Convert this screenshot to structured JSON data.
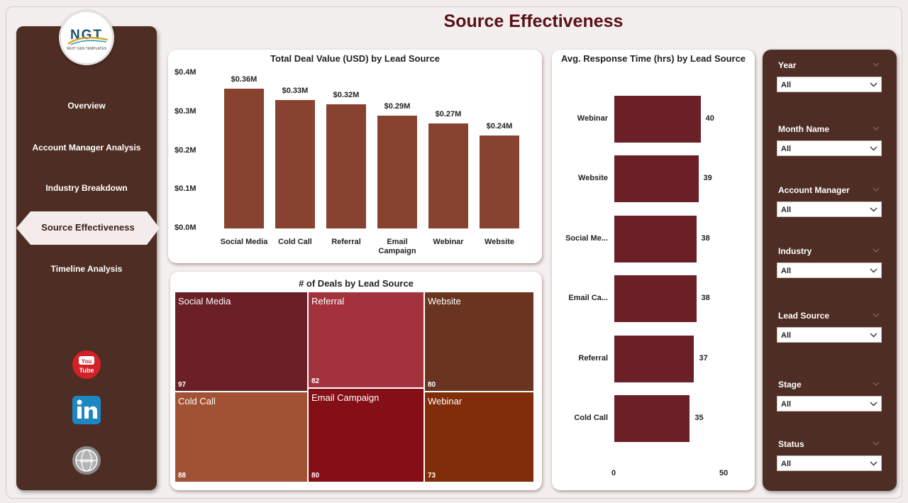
{
  "page": {
    "title": "Source Effectiveness"
  },
  "logo": {
    "text": "NGT",
    "subtitle": "NEXT GEN TEMPLATES"
  },
  "nav": {
    "items": [
      "Overview",
      "Account Manager Analysis",
      "Industry Breakdown",
      "Source Effectiveness",
      "Timeline Analysis"
    ],
    "active": "Source Effectiveness"
  },
  "social": [
    "youtube-icon",
    "linkedin-icon",
    "website-globe-icon"
  ],
  "colors": {
    "sidebar": "#4e2e24",
    "title": "#5a1016",
    "bar": "#874330",
    "hbar": "#6b1f27"
  },
  "chart_data": [
    {
      "type": "bar",
      "title": "Total Deal Value (USD) by Lead Source",
      "categories": [
        "Social Media",
        "Cold Call",
        "Referral",
        "Email Campaign",
        "Webinar",
        "Website"
      ],
      "values": [
        0.36,
        0.33,
        0.32,
        0.29,
        0.27,
        0.24
      ],
      "data_labels": [
        "$0.36M",
        "$0.33M",
        "$0.32M",
        "$0.29M",
        "$0.27M",
        "$0.24M"
      ],
      "yticks": [
        "$0.0M",
        "$0.1M",
        "$0.2M",
        "$0.3M",
        "$0.4M"
      ],
      "ylim": [
        0,
        0.4
      ],
      "xlabel": "",
      "ylabel": ""
    },
    {
      "type": "treemap",
      "title": "# of Deals by Lead Source",
      "items": [
        {
          "name": "Social Media",
          "value": 97,
          "color": "#6b1f27"
        },
        {
          "name": "Cold Call",
          "value": 88,
          "color": "#a15234"
        },
        {
          "name": "Referral",
          "value": 82,
          "color": "#a3323d"
        },
        {
          "name": "Email Campaign",
          "value": 80,
          "color": "#840f16"
        },
        {
          "name": "Website",
          "value": 80,
          "color": "#6a3520"
        },
        {
          "name": "Webinar",
          "value": 73,
          "color": "#812d09"
        }
      ]
    },
    {
      "type": "bar-horizontal",
      "title": "Avg. Response Time (hrs) by Lead Source",
      "categories": [
        "Webinar",
        "Website",
        "Social Me...",
        "Email Ca...",
        "Referral",
        "Cold Call"
      ],
      "values": [
        40,
        39,
        38,
        38,
        37,
        35
      ],
      "xticks": [
        "0",
        "50"
      ],
      "xlim": [
        0,
        50
      ]
    }
  ],
  "filters": [
    {
      "label": "Year",
      "value": "All"
    },
    {
      "label": "Month Name",
      "value": "All"
    },
    {
      "label": "Account Manager",
      "value": "All"
    },
    {
      "label": "Industry",
      "value": "All"
    },
    {
      "label": "Lead Source",
      "value": "All"
    },
    {
      "label": "Stage",
      "value": "All"
    },
    {
      "label": "Status",
      "value": "All"
    }
  ]
}
